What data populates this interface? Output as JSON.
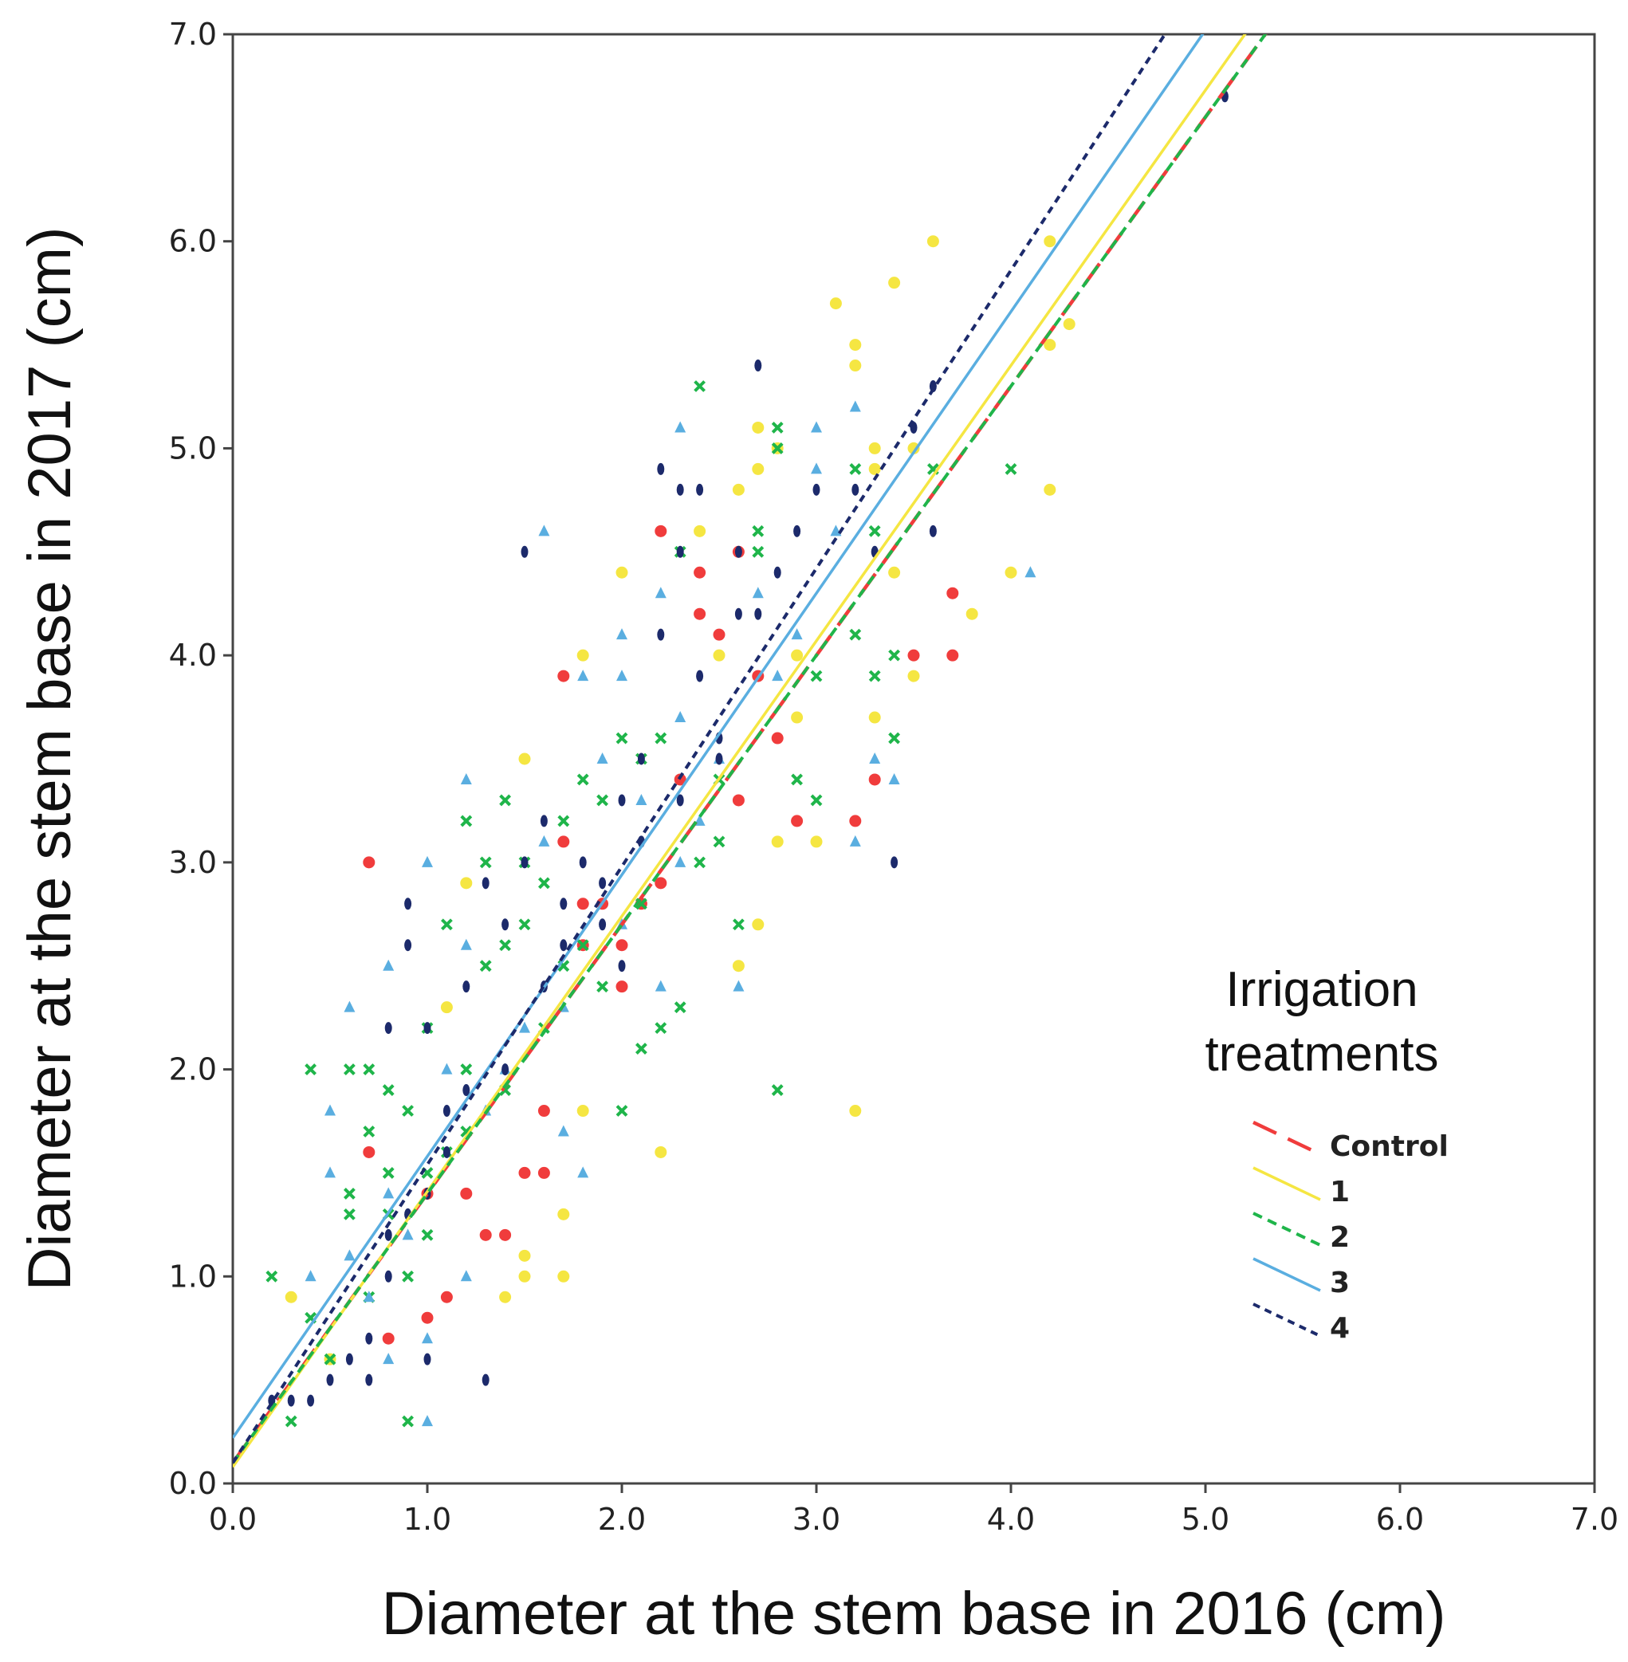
{
  "chart_data": {
    "type": "scatter",
    "title": "",
    "xlabel": "Diameter at the stem base in 2016 (cm)",
    "ylabel": "Diameter at the stem base in 2017 (cm)",
    "xlim": [
      0,
      7
    ],
    "ylim": [
      0,
      7
    ],
    "xticks": [
      "0.0",
      "1.0",
      "2.0",
      "3.0",
      "4.0",
      "5.0",
      "6.0",
      "7.0"
    ],
    "yticks": [
      "0.0",
      "1.0",
      "2.0",
      "3.0",
      "4.0",
      "5.0",
      "6.0",
      "7.0"
    ],
    "legend": {
      "title_line1": "Irrigation",
      "title_line2": "treatments",
      "position": "right"
    },
    "series": [
      {
        "name": "Control",
        "color": "#f03c3c",
        "marker": "circle",
        "line": "long-dash",
        "fit": {
          "intercept": 0.1,
          "slope": 1.3
        },
        "points": [
          [
            0.7,
            3.0
          ],
          [
            0.7,
            1.6
          ],
          [
            0.8,
            0.7
          ],
          [
            1.0,
            0.8
          ],
          [
            1.0,
            1.4
          ],
          [
            1.1,
            0.9
          ],
          [
            1.2,
            1.4
          ],
          [
            1.3,
            1.2
          ],
          [
            1.4,
            1.2
          ],
          [
            1.5,
            1.5
          ],
          [
            1.6,
            1.5
          ],
          [
            1.6,
            1.8
          ],
          [
            1.7,
            3.9
          ],
          [
            1.7,
            3.1
          ],
          [
            1.8,
            2.8
          ],
          [
            1.9,
            2.8
          ],
          [
            2.0,
            2.4
          ],
          [
            2.1,
            2.8
          ],
          [
            2.2,
            4.6
          ],
          [
            2.3,
            3.4
          ],
          [
            2.4,
            4.4
          ],
          [
            2.4,
            4.2
          ],
          [
            2.5,
            4.1
          ],
          [
            2.6,
            4.5
          ],
          [
            2.6,
            3.3
          ],
          [
            2.7,
            3.9
          ],
          [
            2.8,
            3.6
          ],
          [
            2.9,
            3.2
          ],
          [
            3.2,
            3.2
          ],
          [
            3.3,
            3.4
          ],
          [
            3.5,
            4.0
          ],
          [
            3.7,
            4.3
          ],
          [
            3.7,
            4.0
          ],
          [
            2.0,
            2.6
          ],
          [
            1.8,
            2.6
          ],
          [
            2.2,
            2.9
          ]
        ]
      },
      {
        "name": "1",
        "color": "#f5e642",
        "marker": "circle",
        "line": "solid",
        "fit": {
          "intercept": 0.08,
          "slope": 1.33
        },
        "points": [
          [
            0.3,
            0.9
          ],
          [
            0.5,
            0.6
          ],
          [
            1.1,
            2.3
          ],
          [
            1.2,
            2.9
          ],
          [
            1.4,
            0.9
          ],
          [
            1.5,
            1.0
          ],
          [
            1.5,
            1.1
          ],
          [
            1.5,
            3.5
          ],
          [
            1.7,
            1.0
          ],
          [
            1.7,
            1.3
          ],
          [
            1.8,
            4.0
          ],
          [
            1.8,
            1.8
          ],
          [
            2.0,
            4.4
          ],
          [
            2.2,
            1.6
          ],
          [
            2.4,
            4.6
          ],
          [
            2.5,
            4.0
          ],
          [
            2.6,
            4.8
          ],
          [
            2.6,
            2.5
          ],
          [
            2.7,
            5.1
          ],
          [
            2.7,
            4.9
          ],
          [
            2.7,
            2.7
          ],
          [
            2.8,
            5.0
          ],
          [
            2.8,
            3.1
          ],
          [
            2.9,
            4.0
          ],
          [
            2.9,
            3.7
          ],
          [
            3.0,
            3.1
          ],
          [
            3.1,
            5.7
          ],
          [
            3.2,
            5.5
          ],
          [
            3.2,
            5.4
          ],
          [
            3.2,
            1.8
          ],
          [
            3.3,
            4.9
          ],
          [
            3.3,
            5.0
          ],
          [
            3.3,
            3.7
          ],
          [
            3.4,
            4.4
          ],
          [
            3.4,
            5.8
          ],
          [
            3.5,
            3.9
          ],
          [
            3.5,
            5.0
          ],
          [
            3.6,
            6.0
          ],
          [
            3.8,
            4.2
          ],
          [
            4.0,
            4.4
          ],
          [
            4.2,
            6.0
          ],
          [
            4.2,
            5.5
          ],
          [
            4.2,
            4.8
          ],
          [
            4.3,
            5.6
          ]
        ]
      },
      {
        "name": "2",
        "color": "#1fb54a",
        "marker": "x",
        "line": "short-dash",
        "fit": {
          "intercept": 0.1,
          "slope": 1.3
        },
        "points": [
          [
            0.2,
            1.0
          ],
          [
            0.3,
            0.3
          ],
          [
            0.4,
            2.0
          ],
          [
            0.4,
            0.8
          ],
          [
            0.5,
            0.6
          ],
          [
            0.6,
            2.0
          ],
          [
            0.6,
            1.4
          ],
          [
            0.6,
            1.3
          ],
          [
            0.7,
            1.7
          ],
          [
            0.7,
            2.0
          ],
          [
            0.8,
            1.9
          ],
          [
            0.8,
            1.5
          ],
          [
            0.9,
            0.3
          ],
          [
            0.9,
            1.8
          ],
          [
            0.9,
            1.0
          ],
          [
            1.0,
            2.2
          ],
          [
            1.0,
            1.2
          ],
          [
            1.1,
            2.7
          ],
          [
            1.1,
            1.6
          ],
          [
            1.2,
            3.2
          ],
          [
            1.2,
            2.0
          ],
          [
            1.3,
            3.0
          ],
          [
            1.3,
            2.5
          ],
          [
            1.4,
            2.6
          ],
          [
            1.4,
            3.3
          ],
          [
            1.5,
            2.7
          ],
          [
            1.5,
            3.0
          ],
          [
            1.6,
            2.2
          ],
          [
            1.6,
            2.9
          ],
          [
            1.7,
            3.2
          ],
          [
            1.7,
            2.5
          ],
          [
            1.8,
            3.4
          ],
          [
            1.8,
            2.6
          ],
          [
            1.9,
            3.3
          ],
          [
            2.0,
            1.8
          ],
          [
            2.0,
            3.6
          ],
          [
            2.1,
            3.5
          ],
          [
            2.1,
            2.1
          ],
          [
            2.2,
            3.6
          ],
          [
            2.2,
            2.2
          ],
          [
            2.3,
            4.5
          ],
          [
            2.3,
            2.3
          ],
          [
            2.4,
            5.3
          ],
          [
            2.4,
            3.0
          ],
          [
            2.5,
            3.4
          ],
          [
            2.6,
            2.7
          ],
          [
            2.7,
            4.6
          ],
          [
            2.7,
            4.5
          ],
          [
            2.8,
            5.1
          ],
          [
            2.8,
            5.0
          ],
          [
            2.8,
            1.9
          ],
          [
            2.9,
            3.4
          ],
          [
            3.0,
            3.9
          ],
          [
            3.0,
            3.3
          ],
          [
            3.2,
            4.9
          ],
          [
            3.2,
            4.1
          ],
          [
            3.3,
            4.6
          ],
          [
            3.3,
            3.9
          ],
          [
            3.4,
            4.0
          ],
          [
            3.4,
            3.6
          ],
          [
            3.6,
            4.9
          ],
          [
            4.0,
            4.9
          ],
          [
            2.5,
            3.1
          ],
          [
            2.1,
            2.8
          ],
          [
            1.9,
            2.4
          ],
          [
            1.4,
            1.9
          ],
          [
            1.2,
            1.7
          ],
          [
            1.0,
            1.5
          ],
          [
            0.8,
            1.3
          ],
          [
            0.7,
            0.9
          ]
        ]
      },
      {
        "name": "3",
        "color": "#5aaee0",
        "marker": "triangle",
        "line": "solid",
        "fit": {
          "intercept": 0.22,
          "slope": 1.36
        },
        "points": [
          [
            0.4,
            1.0
          ],
          [
            0.5,
            1.5
          ],
          [
            0.5,
            1.8
          ],
          [
            0.6,
            2.3
          ],
          [
            0.6,
            1.1
          ],
          [
            0.7,
            0.9
          ],
          [
            0.8,
            2.5
          ],
          [
            0.8,
            1.4
          ],
          [
            0.8,
            0.6
          ],
          [
            1.0,
            3.0
          ],
          [
            1.0,
            0.7
          ],
          [
            1.0,
            0.3
          ],
          [
            1.1,
            2.0
          ],
          [
            1.2,
            3.4
          ],
          [
            1.2,
            2.6
          ],
          [
            1.2,
            1.0
          ],
          [
            1.3,
            1.8
          ],
          [
            1.5,
            2.2
          ],
          [
            1.6,
            4.6
          ],
          [
            1.6,
            3.1
          ],
          [
            1.7,
            1.7
          ],
          [
            1.8,
            3.9
          ],
          [
            1.8,
            1.5
          ],
          [
            1.9,
            3.5
          ],
          [
            2.0,
            4.1
          ],
          [
            2.0,
            3.9
          ],
          [
            2.1,
            3.3
          ],
          [
            2.2,
            4.3
          ],
          [
            2.2,
            2.4
          ],
          [
            2.3,
            5.1
          ],
          [
            2.3,
            3.7
          ],
          [
            2.4,
            3.2
          ],
          [
            2.5,
            3.5
          ],
          [
            2.6,
            2.4
          ],
          [
            2.7,
            4.3
          ],
          [
            2.8,
            3.9
          ],
          [
            2.9,
            4.1
          ],
          [
            3.0,
            5.1
          ],
          [
            3.0,
            4.9
          ],
          [
            3.1,
            4.6
          ],
          [
            3.2,
            5.2
          ],
          [
            3.2,
            3.1
          ],
          [
            3.3,
            3.5
          ],
          [
            3.4,
            3.4
          ],
          [
            4.1,
            4.4
          ],
          [
            1.4,
            2.0
          ],
          [
            1.7,
            2.3
          ],
          [
            2.0,
            2.7
          ],
          [
            2.3,
            3.0
          ],
          [
            0.9,
            1.2
          ]
        ]
      },
      {
        "name": "4",
        "color": "#1c2a6b",
        "marker": "diamond",
        "line": "dotted",
        "fit": {
          "intercept": 0.1,
          "slope": 1.44
        },
        "points": [
          [
            0.2,
            0.4
          ],
          [
            0.3,
            0.4
          ],
          [
            0.4,
            0.4
          ],
          [
            0.5,
            0.5
          ],
          [
            0.6,
            0.6
          ],
          [
            0.7,
            0.5
          ],
          [
            0.7,
            0.7
          ],
          [
            0.8,
            1.0
          ],
          [
            0.8,
            2.2
          ],
          [
            0.9,
            2.8
          ],
          [
            0.9,
            2.6
          ],
          [
            1.0,
            2.2
          ],
          [
            1.0,
            0.6
          ],
          [
            1.1,
            1.8
          ],
          [
            1.2,
            2.4
          ],
          [
            1.3,
            0.5
          ],
          [
            1.3,
            2.9
          ],
          [
            1.4,
            2.7
          ],
          [
            1.5,
            4.5
          ],
          [
            1.5,
            3.0
          ],
          [
            1.6,
            3.2
          ],
          [
            1.6,
            2.4
          ],
          [
            1.7,
            2.6
          ],
          [
            1.8,
            3.0
          ],
          [
            1.9,
            2.7
          ],
          [
            2.0,
            3.3
          ],
          [
            2.1,
            3.5
          ],
          [
            2.2,
            4.9
          ],
          [
            2.2,
            4.1
          ],
          [
            2.3,
            4.5
          ],
          [
            2.3,
            4.8
          ],
          [
            2.4,
            4.8
          ],
          [
            2.4,
            3.9
          ],
          [
            2.5,
            3.5
          ],
          [
            2.6,
            4.5
          ],
          [
            2.6,
            4.2
          ],
          [
            2.7,
            5.4
          ],
          [
            2.7,
            4.2
          ],
          [
            2.8,
            4.4
          ],
          [
            2.9,
            4.6
          ],
          [
            3.0,
            4.8
          ],
          [
            3.2,
            4.8
          ],
          [
            3.3,
            4.5
          ],
          [
            3.4,
            3.0
          ],
          [
            3.5,
            5.1
          ],
          [
            3.6,
            4.6
          ],
          [
            3.6,
            5.3
          ],
          [
            5.1,
            6.7
          ],
          [
            1.9,
            2.9
          ],
          [
            1.7,
            2.8
          ],
          [
            1.4,
            2.0
          ],
          [
            1.2,
            1.9
          ],
          [
            1.1,
            1.6
          ],
          [
            1.0,
            1.4
          ],
          [
            0.9,
            1.3
          ],
          [
            0.8,
            1.2
          ],
          [
            2.1,
            3.1
          ],
          [
            2.3,
            3.3
          ],
          [
            2.5,
            3.6
          ],
          [
            2.0,
            2.5
          ]
        ]
      }
    ]
  }
}
